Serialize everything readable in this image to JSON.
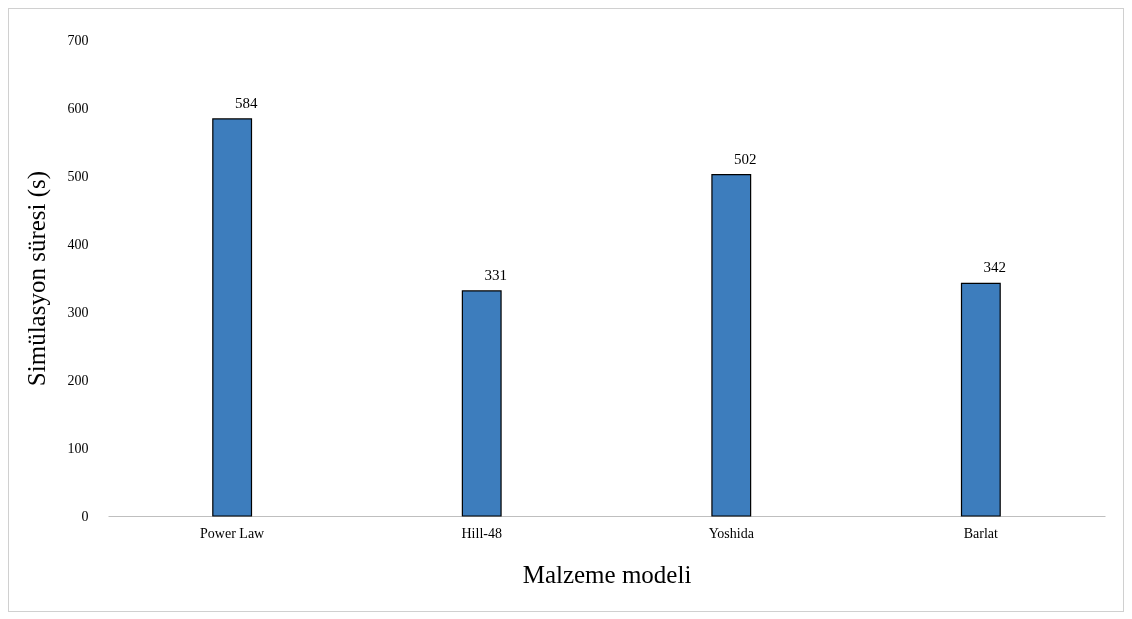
{
  "chart_data": {
    "type": "bar",
    "xlabel": "Malzeme modeli",
    "ylabel": "Simülasyon süresi (s)",
    "categories": [
      "Power Law",
      "Hill-48",
      "Yoshida",
      "Barlat"
    ],
    "values": [
      584,
      331,
      502,
      342
    ],
    "color": "#3d7dbd",
    "ylim": [
      0,
      700
    ],
    "yticks": [
      0,
      100,
      200,
      300,
      400,
      500,
      600,
      700
    ],
    "grid": false,
    "data_labels": true
  }
}
